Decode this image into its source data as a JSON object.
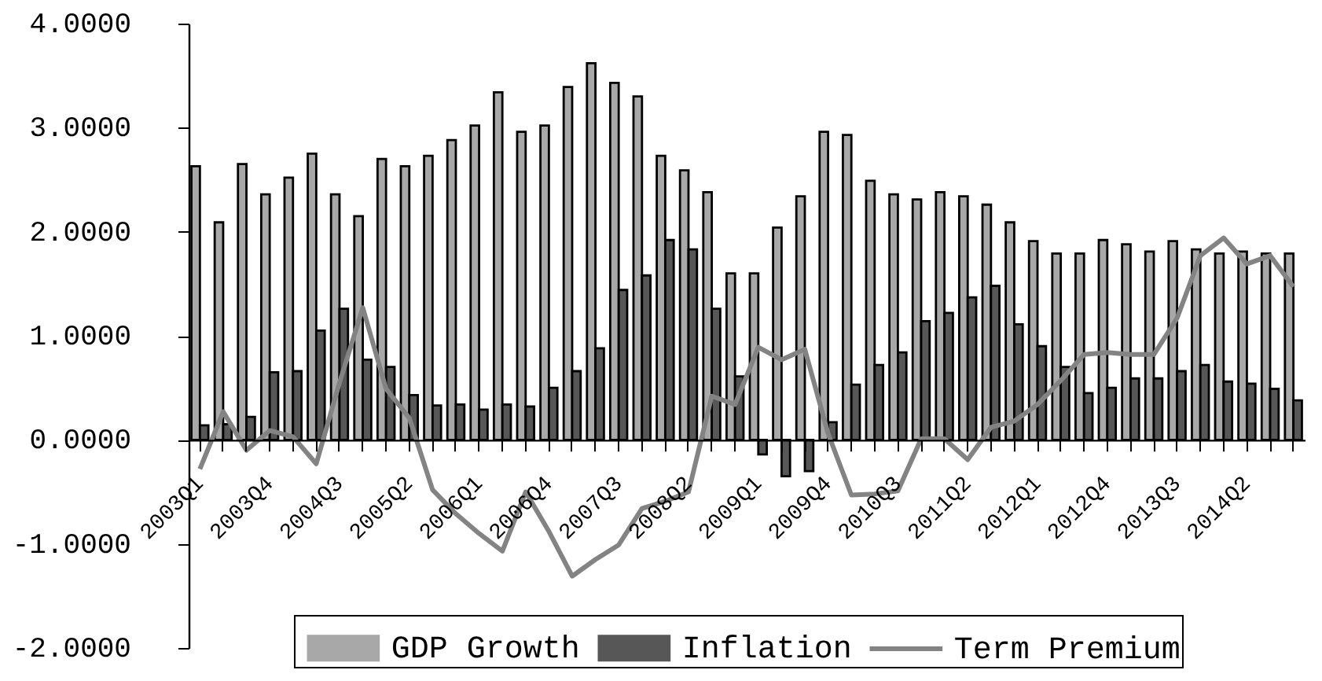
{
  "chart_data": {
    "type": "bar",
    "categories": [
      "2003Q1",
      null,
      null,
      "2003Q4",
      null,
      null,
      "2004Q3",
      null,
      null,
      "2005Q2",
      null,
      null,
      "2006Q1",
      null,
      null,
      "2006Q4",
      null,
      null,
      "2007Q3",
      null,
      null,
      "2008Q2",
      null,
      null,
      "2009Q1",
      null,
      null,
      "2009Q4",
      null,
      null,
      "2010Q3",
      null,
      null,
      "2011Q2",
      null,
      null,
      "2012Q1",
      null,
      null,
      "2012Q4",
      null,
      null,
      "2013Q3",
      null,
      null,
      "2014Q2",
      null,
      null
    ],
    "series": [
      {
        "name": "GDP Growth",
        "color": "#a8a8a8",
        "values": [
          2.63,
          2.09,
          2.65,
          2.36,
          2.52,
          2.75,
          2.36,
          2.15,
          2.7,
          2.63,
          2.73,
          2.88,
          3.02,
          3.34,
          2.96,
          3.02,
          3.39,
          3.62,
          3.43,
          3.3,
          2.73,
          2.59,
          2.38,
          1.6,
          1.6,
          2.04,
          2.34,
          2.96,
          2.93,
          2.49,
          2.36,
          2.31,
          2.38,
          2.34,
          2.26,
          2.09,
          1.91,
          1.79,
          1.79,
          1.92,
          1.88,
          1.81,
          1.91,
          1.83,
          1.79,
          1.81,
          1.79,
          1.79
        ]
      },
      {
        "name": "Inflation",
        "color": "#575757",
        "values": [
          0.14,
          0.15,
          0.22,
          0.65,
          0.66,
          1.05,
          1.26,
          0.77,
          0.7,
          0.43,
          0.33,
          0.34,
          0.29,
          0.34,
          0.32,
          0.5,
          0.66,
          0.88,
          1.44,
          1.58,
          1.92,
          1.83,
          1.26,
          0.61,
          -0.14,
          -0.35,
          -0.3,
          0.17,
          0.53,
          0.72,
          0.84,
          1.14,
          1.22,
          1.37,
          1.48,
          1.11,
          0.9,
          0.7,
          0.45,
          0.5,
          0.59,
          0.59,
          0.66,
          0.72,
          0.56,
          0.54,
          0.49,
          0.38
        ]
      },
      {
        "name": "Term Premium",
        "type": "line",
        "color": "#838383",
        "values": [
          -0.28,
          0.27,
          -0.1,
          0.09,
          0.03,
          -0.23,
          0.55,
          1.27,
          0.49,
          0.21,
          -0.48,
          -0.71,
          -0.9,
          -1.07,
          -0.5,
          -0.88,
          -1.31,
          -1.15,
          -1.01,
          -0.66,
          -0.59,
          -0.5,
          0.42,
          0.34,
          0.89,
          0.77,
          0.87,
          0.06,
          -0.53,
          -0.52,
          -0.49,
          0.01,
          0.01,
          -0.19,
          0.12,
          0.18,
          0.34,
          0.57,
          0.82,
          0.84,
          0.82,
          0.82,
          1.17,
          1.77,
          1.94,
          1.69,
          1.77,
          1.47
        ]
      }
    ],
    "ylim": [
      -2,
      4
    ],
    "yticks": [
      {
        "value": -2,
        "label": "-2.0000"
      },
      {
        "value": -1,
        "label": "-1.0000"
      },
      {
        "value": 0,
        "label": "0.0000"
      },
      {
        "value": 1,
        "label": "1.0000"
      },
      {
        "value": 2,
        "label": "2.0000"
      },
      {
        "value": 3,
        "label": "3.0000"
      },
      {
        "value": 4,
        "label": "4.0000"
      }
    ],
    "legend": "bottom"
  }
}
